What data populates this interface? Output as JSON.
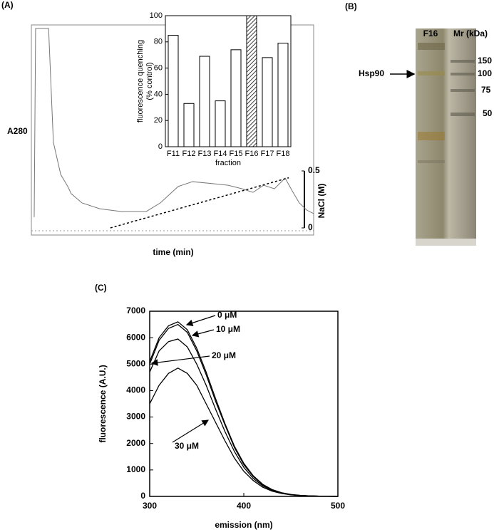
{
  "chart_data": [
    {
      "type": "line",
      "title": "(A)",
      "x_label": "time (min)",
      "y_label": "A280",
      "y2_label": "NaCl (M)",
      "xlim": [
        0,
        100
      ],
      "ylim": [
        0,
        100
      ],
      "y2lim": [
        0,
        0.5
      ],
      "y2ticks": [
        0,
        0.5
      ],
      "series": [
        {
          "color": "#777777",
          "x": [
            1.0,
            1.5,
            6.1,
            7.8,
            10.4,
            12.9,
            14.1,
            17.9,
            24.2,
            31.8,
            40.7,
            45.7,
            52.0,
            57.1,
            64.6,
            69.7,
            74.7,
            78.5,
            82.3,
            86.1,
            89.9,
            92.4,
            94.9,
            97.5,
            100
          ],
          "values": [
            8.5,
            98.3,
            98.3,
            44.1,
            28.8,
            23.1,
            19.7,
            15.3,
            12.5,
            11.2,
            11.2,
            15.3,
            23.1,
            25.4,
            24.4,
            23.7,
            22.0,
            20.3,
            23.7,
            22.0,
            27.1,
            21.0,
            15.3,
            11.9,
            10.2
          ]
        },
        {
          "color": "#000000",
          "axis": "y2",
          "dashed": true,
          "x": [
            28.0,
            91.2
          ],
          "values": [
            0,
            0.44
          ]
        }
      ]
    },
    {
      "type": "bar",
      "x_label": "fraction",
      "y_label": [
        "fluorescence quenching",
        "(% control)"
      ],
      "categories": [
        "F11",
        "F12",
        "F13",
        "F14",
        "F15",
        "F16",
        "F17",
        "F18"
      ],
      "values": [
        85,
        33,
        69,
        35,
        74,
        100,
        68,
        79
      ],
      "hatched": [
        false,
        false,
        false,
        false,
        false,
        true,
        false,
        false
      ],
      "color": "#ffffff",
      "ylim": [
        0,
        100
      ],
      "yticks": [
        0,
        20,
        40,
        60,
        80,
        100
      ]
    },
    {
      "type": "line",
      "title": "(C)",
      "x_label": "emission (nm)",
      "y_label": "fluorescence (A.U.)",
      "x": [
        300,
        310,
        320,
        330,
        340,
        350,
        360,
        370,
        380,
        390,
        400,
        410,
        420,
        430,
        440,
        450,
        460,
        470,
        480,
        490,
        500
      ],
      "xlim": [
        300,
        500
      ],
      "xticks": [
        300,
        400,
        500
      ],
      "ylim": [
        0,
        7000
      ],
      "yticks": [
        0,
        1000,
        2000,
        3000,
        4000,
        5000,
        6000,
        7000
      ],
      "series": [
        {
          "name": "0 μM",
          "color": "#000000",
          "values": [
            5100,
            6000,
            6450,
            6600,
            6300,
            5600,
            4700,
            3700,
            2750,
            1900,
            1250,
            780,
            460,
            260,
            140,
            75,
            40,
            20,
            10,
            5,
            0
          ]
        },
        {
          "name": "10 μM",
          "color": "#000000",
          "values": [
            5000,
            5900,
            6350,
            6500,
            6200,
            5500,
            4600,
            3600,
            2700,
            1850,
            1200,
            750,
            440,
            250,
            135,
            70,
            38,
            19,
            9,
            4,
            0
          ]
        },
        {
          "name": "20 μM",
          "color": "#000000",
          "values": [
            4700,
            5500,
            5850,
            5950,
            5650,
            5000,
            4200,
            3300,
            2450,
            1700,
            1100,
            680,
            400,
            230,
            125,
            65,
            35,
            18,
            9,
            4,
            0
          ]
        },
        {
          "name": "30 μM",
          "color": "#000000",
          "values": [
            3500,
            4200,
            4650,
            4850,
            4650,
            4200,
            3500,
            2800,
            2100,
            1450,
            950,
            600,
            350,
            200,
            110,
            58,
            30,
            15,
            8,
            4,
            0
          ]
        }
      ]
    }
  ],
  "gel": {
    "title": "(B)",
    "lanes": [
      "F16",
      "Mr (kDa)"
    ],
    "markers": [
      150,
      100,
      75,
      50
    ],
    "band_label": "Hsp90"
  }
}
